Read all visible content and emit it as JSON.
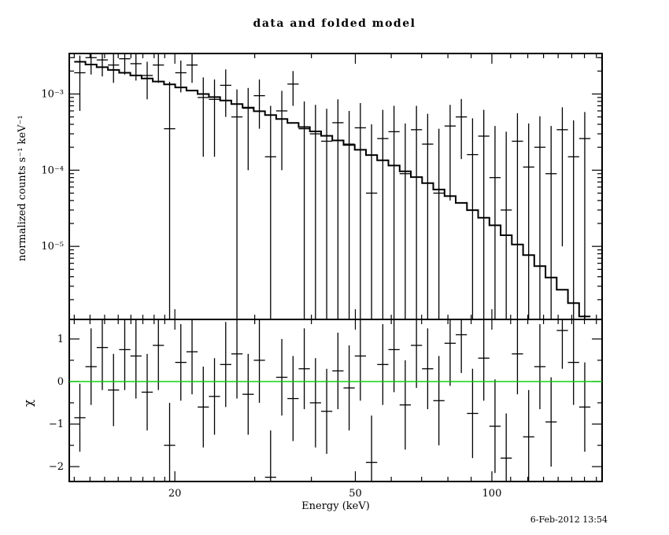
{
  "chart_data": {
    "type": "line",
    "title": "data and folded model",
    "xlabel": "Energy (keV)",
    "timestamp": "6-Feb-2012 13:54",
    "xscale": "log",
    "xlim": [
      11.7,
      175
    ],
    "x_ticks_major": [
      {
        "v": 20,
        "label": "20"
      },
      {
        "v": 50,
        "label": "50"
      },
      {
        "v": 100,
        "label": "100"
      }
    ],
    "x_ticks_minor": [
      12,
      13,
      14,
      15,
      16,
      17,
      18,
      19,
      30,
      40,
      60,
      70,
      80,
      90,
      110,
      120,
      130,
      140,
      150,
      160,
      170
    ],
    "bin_edges": [
      12.0,
      12.703,
      13.448,
      14.236,
      15.071,
      15.954,
      16.889,
      17.879,
      18.927,
      20.037,
      21.211,
      22.455,
      23.771,
      25.164,
      26.639,
      28.201,
      29.854,
      31.604,
      33.456,
      35.418,
      37.494,
      39.692,
      42.018,
      44.481,
      47.089,
      49.849,
      52.771,
      55.865,
      59.139,
      62.606,
      66.276,
      70.16,
      74.273,
      78.627,
      83.236,
      88.115,
      93.28,
      98.748,
      104.537,
      110.664,
      117.151,
      124.018,
      131.288,
      138.984,
      147.131,
      155.755,
      164.885
    ],
    "top_panel": {
      "ylabel": "normalized counts s⁻¹ keV⁻¹",
      "yscale": "log",
      "ylim": [
        1.1e-06,
        0.0034
      ],
      "y_ticks_major": [
        {
          "v": 0.001,
          "label": "10⁻³"
        },
        {
          "v": 0.0001,
          "label": "10⁻⁴"
        },
        {
          "v": 1e-05,
          "label": "10⁻⁵"
        }
      ],
      "y_ticks_minor": [
        2e-06,
        3e-06,
        4e-06,
        5e-06,
        6e-06,
        7e-06,
        8e-06,
        9e-06,
        2e-05,
        3e-05,
        4e-05,
        5e-05,
        6e-05,
        7e-05,
        8e-05,
        9e-05,
        0.0002,
        0.0003,
        0.0004,
        0.0005,
        0.0006,
        0.0007,
        0.0008,
        0.0009,
        0.002,
        0.003
      ],
      "model": [
        0.00265,
        0.00244,
        0.00225,
        0.00207,
        0.0019,
        0.00175,
        0.0016,
        0.00146,
        0.00134,
        0.00122,
        0.00111,
        0.001,
        0.00091,
        0.000821,
        0.000738,
        0.000663,
        0.000594,
        0.00053,
        0.00047,
        0.000417,
        0.000368,
        0.000323,
        0.000283,
        0.000246,
        0.000214,
        0.000185,
        0.000158,
        0.000135,
        0.000115,
        9.68e-05,
        8.12e-05,
        6.76e-05,
        5.58e-05,
        4.58e-05,
        3.72e-05,
        2.99e-05,
        2.38e-05,
        1.89e-05,
        1.4e-05,
        1.06e-05,
        7.7e-06,
        5.5e-06,
        3.9e-06,
        2.7e-06,
        1.8e-06,
        1.2e-06
      ],
      "data": [
        0.0019,
        0.003,
        0.0028,
        0.0024,
        0.0029,
        0.0025,
        0.00175,
        0.0024,
        0.00035,
        0.0019,
        0.0024,
        0.0009,
        0.00085,
        0.0013,
        0.0005,
        0.00065,
        0.00095,
        0.00015,
        0.0006,
        0.00135,
        0.00035,
        0.0003,
        0.00024,
        0.00042,
        0.00022,
        0.00036,
        5e-05,
        0.00026,
        0.00032,
        9e-05,
        0.00034,
        0.00022,
        5e-05,
        0.00038,
        0.0005,
        0.00016,
        0.00028,
        8e-05,
        3e-05,
        0.00024,
        0.00011,
        0.0002,
        9e-05,
        0.00034,
        0.00015,
        0.00026
      ],
      "data_err": [
        0.0013,
        0.0012,
        0.0011,
        0.001,
        0.0011,
        0.001,
        0.0009,
        0.001,
        0.0011,
        0.00085,
        0.001,
        0.00075,
        0.0007,
        0.0008,
        0.00065,
        0.00055,
        0.0006,
        0.00055,
        0.0005,
        0.00065,
        0.00045,
        0.00042,
        0.0004,
        0.00043,
        0.00038,
        0.0004,
        0.00035,
        0.00036,
        0.00038,
        0.00032,
        0.00036,
        0.00033,
        0.0003,
        0.00034,
        0.00036,
        0.00032,
        0.00034,
        0.0003,
        0.00029,
        0.00032,
        0.0003,
        0.00031,
        0.00029,
        0.00033,
        0.0003,
        0.00032
      ]
    },
    "bottom_panel": {
      "ylabel": "χ",
      "yscale": "linear",
      "ylim": [
        -2.35,
        1.46
      ],
      "y_ticks_major": [
        {
          "v": 1,
          "label": "1"
        },
        {
          "v": 0,
          "label": "0"
        },
        {
          "v": -1,
          "label": "−1"
        },
        {
          "v": -2,
          "label": "−2"
        }
      ],
      "y_ticks_minor": [
        0.5,
        -0.5,
        -1.5
      ],
      "chi": [
        -0.85,
        0.35,
        0.8,
        -0.2,
        0.75,
        0.6,
        -0.25,
        0.85,
        -1.5,
        0.45,
        0.7,
        -0.6,
        -0.35,
        0.4,
        0.65,
        -0.3,
        0.5,
        -2.25,
        0.1,
        -0.4,
        0.3,
        -0.5,
        -0.7,
        0.25,
        -0.15,
        0.6,
        -1.9,
        0.4,
        0.75,
        -0.55,
        0.85,
        0.3,
        -0.45,
        0.9,
        1.1,
        -0.75,
        0.55,
        -1.05,
        -1.8,
        0.65,
        -1.3,
        0.35,
        -0.95,
        1.2,
        0.45,
        -0.6
      ],
      "chi_err": [
        0.8,
        0.9,
        1.0,
        0.85,
        0.95,
        1.0,
        0.9,
        1.05,
        1.0,
        0.9,
        1.0,
        0.95,
        0.9,
        1.0,
        1.05,
        0.95,
        1.0,
        1.1,
        0.9,
        1.0,
        0.95,
        1.05,
        1.0,
        0.9,
        1.0,
        1.05,
        1.1,
        0.95,
        1.0,
        1.05,
        1.0,
        0.95,
        1.05,
        1.0,
        0.9,
        1.05,
        1.0,
        1.1,
        1.05,
        0.95,
        1.1,
        1.0,
        1.05,
        0.9,
        1.0,
        1.05
      ],
      "zero_line_color": "#00cc00"
    },
    "colors": {
      "data": "#000000",
      "model": "#000000"
    }
  }
}
